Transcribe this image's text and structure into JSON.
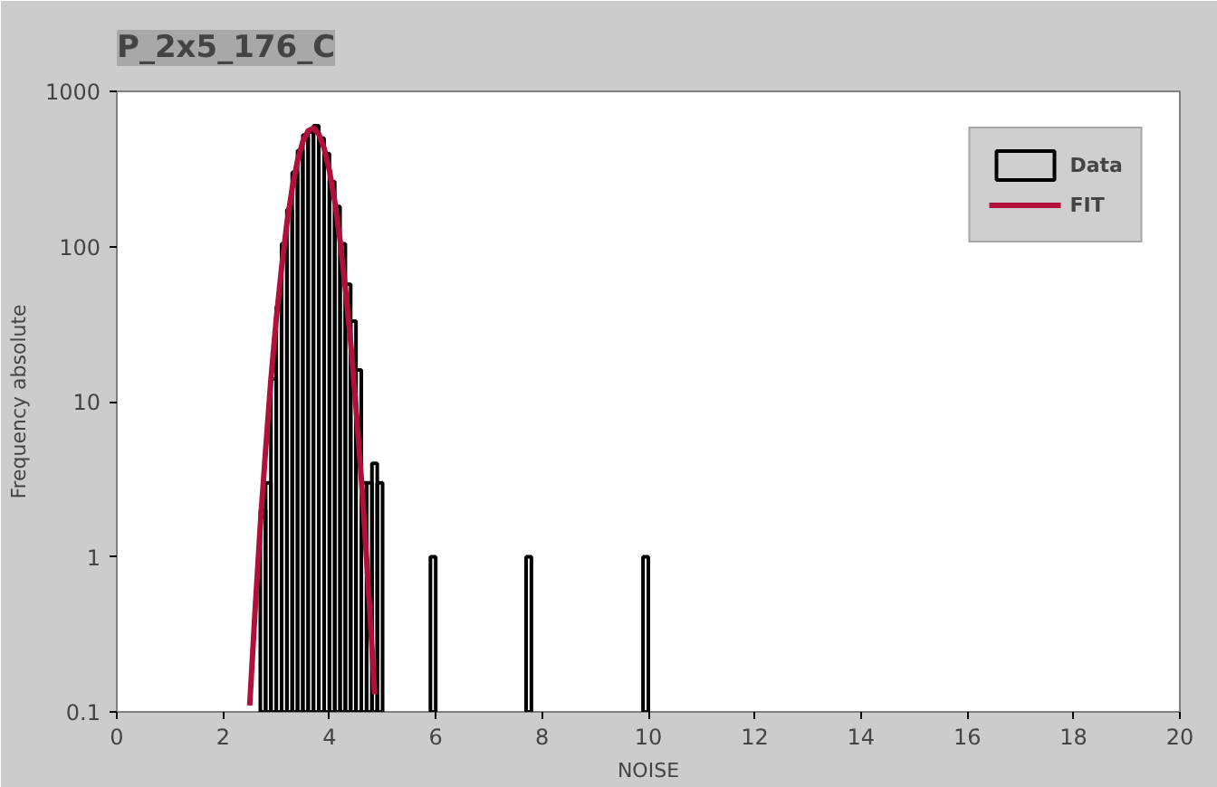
{
  "chart_data": {
    "type": "histogram",
    "title": "P_2x5_176_C",
    "xlabel": "NOISE",
    "ylabel": "Frequency absolute",
    "bins": [
      2.7,
      2.8,
      2.9,
      3.0,
      3.1,
      3.2,
      3.3,
      3.4,
      3.5,
      3.6,
      3.7,
      3.8,
      3.9,
      4.0,
      4.1,
      4.2,
      4.3,
      4.4,
      4.5,
      4.6,
      4.7,
      4.8,
      4.9,
      5.0,
      5.1,
      5.2,
      5.3,
      5.4,
      5.5,
      5.6,
      5.7,
      5.8,
      5.9,
      6.0,
      6.1,
      6.2,
      6.3,
      6.4,
      6.5,
      6.6,
      6.7,
      6.8,
      6.9,
      7.0,
      7.1,
      7.2,
      7.3,
      7.4,
      7.5,
      7.6,
      7.7,
      7.8,
      7.9,
      8.0,
      8.1,
      8.2,
      8.3,
      8.4,
      8.5,
      8.6,
      8.7,
      8.8,
      8.9,
      9.0,
      9.1,
      9.2,
      9.3,
      9.4,
      9.5,
      9.6,
      9.7,
      9.8,
      9.9,
      10.0
    ],
    "series": [
      {
        "name": "Data",
        "color": "#000000",
        "values": [
          2,
          3,
          14,
          41,
          104,
          173,
          301,
          415,
          523,
          548,
          601,
          500,
          397,
          262,
          181,
          104,
          57,
          33,
          16,
          3,
          3,
          4,
          3,
          null,
          null,
          null,
          null,
          null,
          null,
          null,
          null,
          null,
          1,
          null,
          null,
          null,
          null,
          null,
          null,
          null,
          null,
          null,
          null,
          null,
          null,
          null,
          null,
          null,
          null,
          null,
          1,
          null,
          null,
          null,
          null,
          null,
          null,
          null,
          null,
          null,
          null,
          null,
          null,
          null,
          null,
          null,
          null,
          null,
          null,
          null,
          null,
          null,
          1
        ]
      },
      {
        "name": "FIT",
        "type": "line",
        "color": "#b0103a",
        "x": [
          2.5,
          2.6,
          2.7,
          2.8,
          2.9,
          3.0,
          3.1,
          3.2,
          3.3,
          3.4,
          3.5,
          3.6,
          3.7,
          3.8,
          3.9,
          4.0,
          4.1,
          4.2,
          4.3,
          4.4,
          4.5,
          4.6,
          4.7,
          4.8,
          4.85
        ],
        "values": [
          0.11,
          0.44,
          1.6,
          4.9,
          14,
          34,
          73,
          141,
          238,
          358,
          475,
          557,
          580,
          531,
          431,
          309,
          196,
          110,
          54,
          24,
          9.2,
          3.2,
          0.97,
          0.26,
          0.13
        ]
      }
    ],
    "log": "y",
    "xlim": [
      0,
      20
    ],
    "ylim": [
      0.1,
      1000
    ],
    "xticks": [
      0,
      2,
      4,
      6,
      8,
      10,
      12,
      14,
      16,
      18,
      20
    ],
    "yticks": [
      0.1,
      1,
      10,
      100,
      1000
    ],
    "grid": false,
    "legend": "top right"
  }
}
